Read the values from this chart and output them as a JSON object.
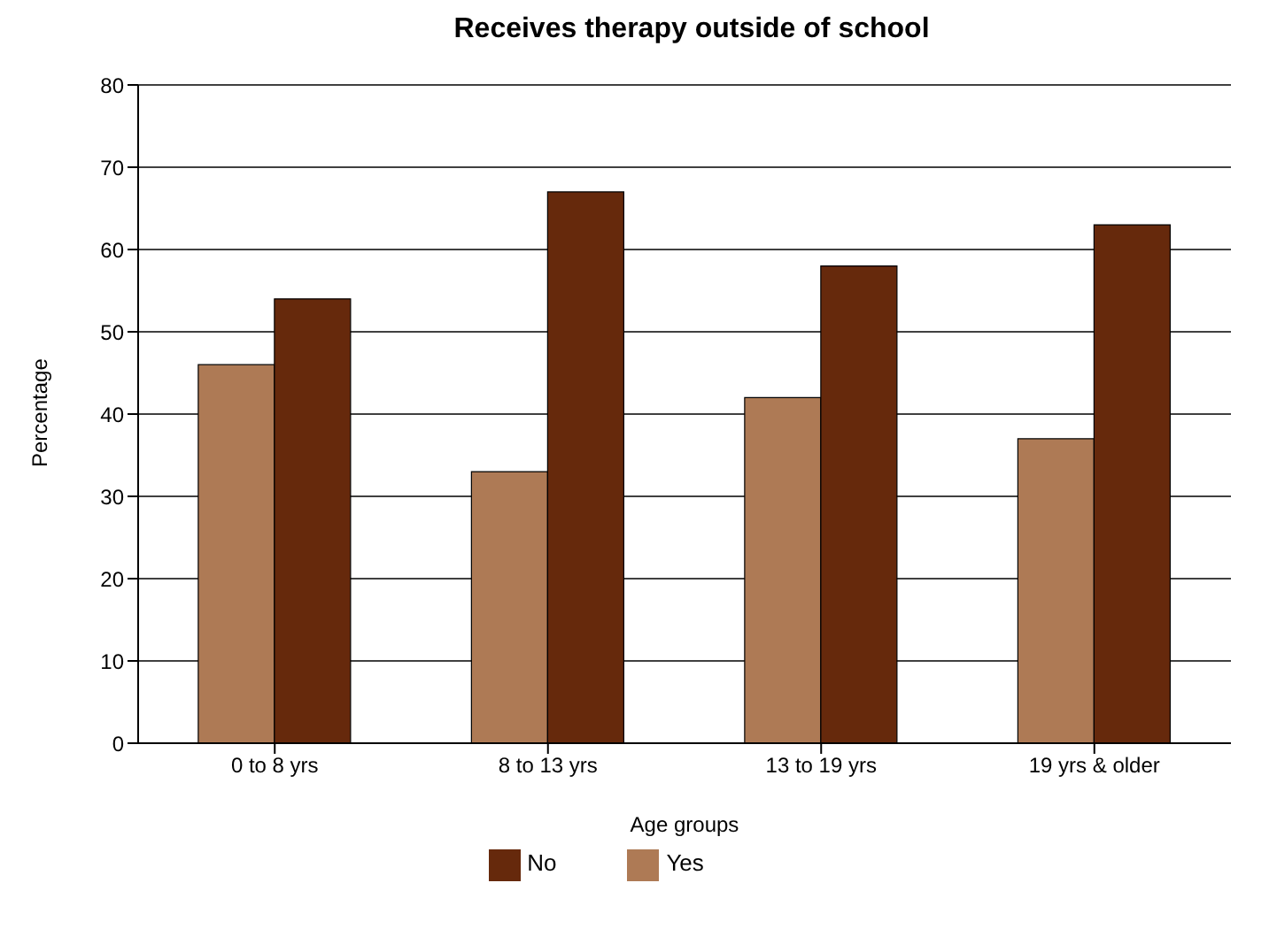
{
  "chart_data": {
    "type": "bar",
    "title": "Receives therapy outside of school",
    "xlabel": "Age groups",
    "ylabel": "Percentage",
    "categories": [
      "0 to 8 yrs",
      "8 to 13 yrs",
      "13 to 19 yrs",
      "19 yrs & older"
    ],
    "series": [
      {
        "name": "Yes",
        "color": "#ae7a55",
        "values": [
          46,
          33,
          42,
          37
        ]
      },
      {
        "name": "No",
        "color": "#66290c",
        "values": [
          54,
          67,
          58,
          63
        ]
      }
    ],
    "ylim": [
      0,
      80
    ],
    "yticks": [
      0,
      10,
      20,
      30,
      40,
      50,
      60,
      70,
      80
    ],
    "grid": "y",
    "legend": "bottom"
  }
}
